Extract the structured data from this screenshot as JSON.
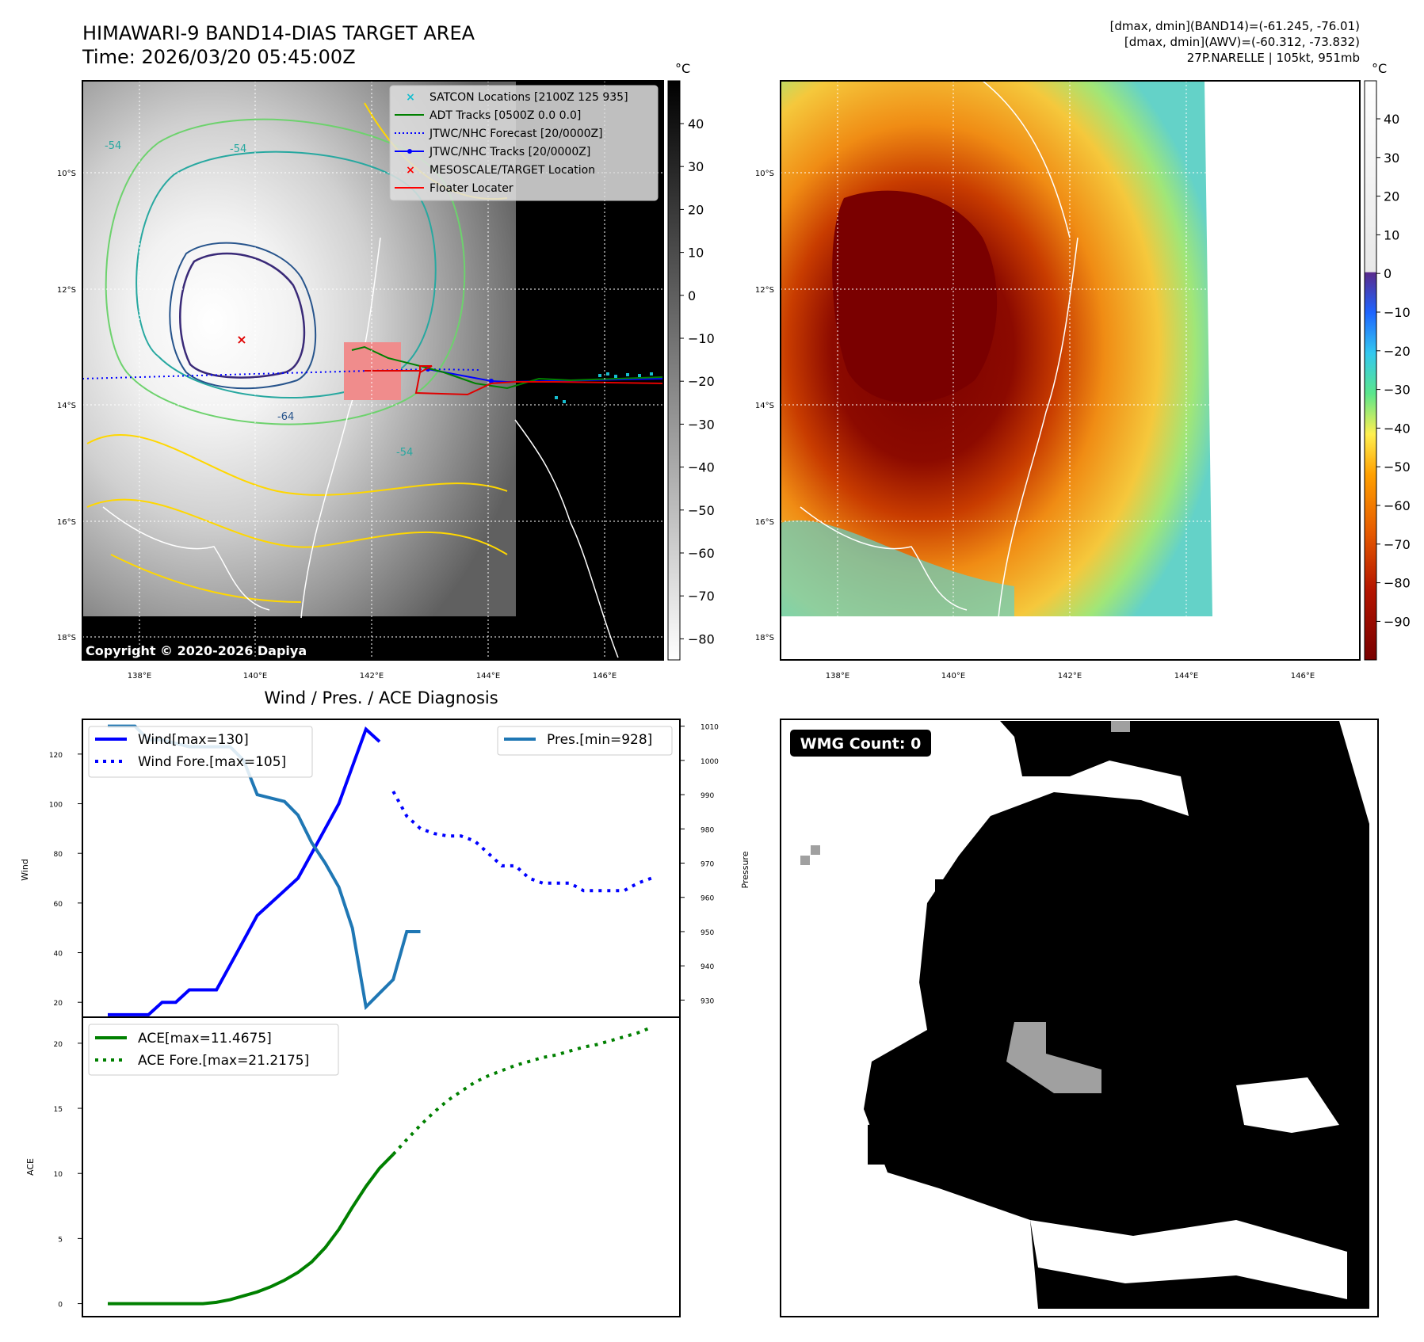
{
  "header": {
    "title_line1": "HIMAWARI-9 BAND14-DIAS TARGET AREA",
    "title_line2": "Time: 2026/03/20 05:45:00Z",
    "info_line1": "[dmax, dmin](BAND14)=(-61.245, -76.01)",
    "info_line2": "[dmax, dmin](AWV)=(-60.312, -73.832)",
    "info_line3": "27P.NARELLE | 105kt, 951mb"
  },
  "map": {
    "lat_labels": [
      "10°S",
      "12°S",
      "14°S",
      "16°S",
      "18°S"
    ],
    "lon_labels": [
      "138°E",
      "140°E",
      "142°E",
      "144°E",
      "146°E"
    ],
    "copyright": "Copyright © 2020-2026 Dapiya",
    "contour_labels": [
      "-54",
      "-54",
      "-64",
      "-54"
    ],
    "unit": "°C",
    "colorbar_left_ticks": [
      "40",
      "30",
      "20",
      "10",
      "0",
      "−10",
      "−20",
      "−30",
      "−40",
      "−50",
      "−60",
      "−70",
      "−80"
    ],
    "colorbar_right_ticks": [
      "40",
      "30",
      "20",
      "10",
      "0",
      "−10",
      "−20",
      "−30",
      "−40",
      "−50",
      "−60",
      "−70",
      "−80",
      "−90"
    ],
    "legend": [
      {
        "label": "SATCON Locations [2100Z 125 935]",
        "color": "#17becf",
        "icon": "x-marker-icon"
      },
      {
        "label": "ADT Tracks [0500Z 0.0 0.0]",
        "color": "#008000",
        "icon": "line-icon"
      },
      {
        "label": "JTWC/NHC Forecast [20/0000Z]",
        "color": "#0000ff",
        "icon": "dotted-line-icon"
      },
      {
        "label": "JTWC/NHC Tracks [20/0000Z]",
        "color": "#0000ff",
        "icon": "line-dot-icon"
      },
      {
        "label": "MESOSCALE/TARGET Location",
        "color": "#ff0000",
        "icon": "x-marker-icon"
      },
      {
        "label": "Floater Locater",
        "color": "#ff0000",
        "icon": "line-icon"
      }
    ]
  },
  "wmg": {
    "label": "WMG Count: 0"
  },
  "chart_data": [
    {
      "type": "line",
      "title": "Wind / Pres. / ACE Diagnosis",
      "ylabel": "Wind",
      "ylabel_right": "Pressure",
      "ylim": [
        14,
        134
      ],
      "ylim_right": [
        925,
        1012
      ],
      "y_ticks": [
        20,
        40,
        60,
        80,
        100,
        120
      ],
      "y_ticks_right": [
        930,
        940,
        950,
        960,
        970,
        980,
        990,
        1000,
        1010
      ],
      "series": [
        {
          "name": "Wind[max=130]",
          "axis": "left",
          "style": "solid",
          "color": "#0000ff",
          "x": [
            0,
            1,
            2,
            3,
            4,
            5,
            6,
            7,
            8,
            9,
            10,
            11,
            12,
            13,
            14,
            15,
            16,
            17,
            18,
            19,
            20
          ],
          "values": [
            15,
            15,
            15,
            15,
            20,
            20,
            25,
            25,
            25,
            35,
            45,
            55,
            60,
            65,
            70,
            80,
            90,
            100,
            115,
            130,
            125
          ]
        },
        {
          "name": "Wind Fore.[max=105]",
          "axis": "left",
          "style": "dotted",
          "color": "#0000ff",
          "x": [
            21,
            22,
            23,
            24,
            25,
            26,
            27,
            28,
            29,
            30,
            31,
            32,
            33,
            34,
            35,
            36,
            37,
            38,
            39,
            40
          ],
          "values": [
            105,
            95,
            90,
            88,
            87,
            87,
            85,
            80,
            75,
            75,
            70,
            68,
            68,
            68,
            65,
            65,
            65,
            65,
            68,
            70
          ]
        },
        {
          "name": "Pres.[min=928]",
          "axis": "right",
          "style": "solid",
          "color": "#1f77b4",
          "x": [
            0,
            1,
            2,
            3,
            4,
            5,
            6,
            7,
            8,
            9,
            10,
            11,
            12,
            13,
            14,
            15,
            16,
            17,
            18,
            19,
            20,
            21,
            22,
            23
          ],
          "values": [
            1010,
            1010,
            1010,
            1006,
            1006,
            1005,
            1004,
            1004,
            1004,
            1004,
            1000,
            990,
            989,
            988,
            984,
            976,
            970,
            963,
            951,
            928,
            932,
            936,
            950,
            950
          ]
        }
      ]
    },
    {
      "type": "line",
      "ylabel": "ACE",
      "ylim": [
        -1,
        22
      ],
      "y_ticks": [
        0,
        5,
        10,
        15,
        20
      ],
      "series": [
        {
          "name": "ACE[max=11.4675]",
          "style": "solid",
          "color": "#008000",
          "x": [
            0,
            1,
            2,
            3,
            4,
            5,
            6,
            7,
            8,
            9,
            10,
            11,
            12,
            13,
            14,
            15,
            16,
            17,
            18,
            19,
            20,
            21
          ],
          "values": [
            0,
            0,
            0,
            0,
            0,
            0,
            0,
            0,
            0.1,
            0.3,
            0.6,
            0.9,
            1.3,
            1.8,
            2.4,
            3.2,
            4.3,
            5.7,
            7.4,
            9,
            10.4,
            11.4675
          ]
        },
        {
          "name": "ACE Fore.[max=21.2175]",
          "style": "dotted",
          "color": "#008000",
          "x": [
            21,
            22,
            23,
            24,
            25,
            26,
            27,
            28,
            29,
            30,
            31,
            32,
            33,
            34,
            35,
            36,
            37,
            38,
            39,
            40
          ],
          "values": [
            11.4675,
            12.6,
            13.7,
            14.7,
            15.6,
            16.3,
            17,
            17.5,
            17.9,
            18.3,
            18.6,
            18.9,
            19.1,
            19.4,
            19.7,
            19.9,
            20.2,
            20.5,
            20.8,
            21.2175
          ]
        }
      ]
    }
  ]
}
